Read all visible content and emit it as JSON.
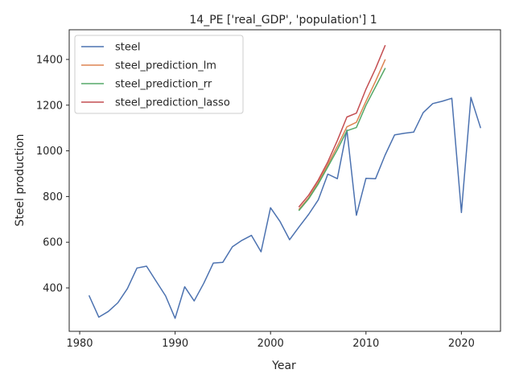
{
  "chart_data": {
    "type": "line",
    "title": "14_PE ['real_GDP', 'population'] 1",
    "xlabel": "Year",
    "ylabel": "Steel production",
    "xlim": [
      1978.9,
      2024.1
    ],
    "ylim": [
      210,
      1530
    ],
    "xticks": [
      1980,
      1990,
      2000,
      2010,
      2020
    ],
    "yticks": [
      400,
      600,
      800,
      1000,
      1200,
      1400
    ],
    "grid": false,
    "legend_position": "top-left",
    "series": [
      {
        "name": "steel",
        "color": "#4c72b0",
        "x": [
          1981,
          1982,
          1983,
          1984,
          1985,
          1986,
          1987,
          1988,
          1989,
          1990,
          1991,
          1992,
          1993,
          1994,
          1995,
          1996,
          1997,
          1998,
          1999,
          2000,
          2001,
          2002,
          2003,
          2004,
          2005,
          2006,
          2007,
          2008,
          2009,
          2010,
          2011,
          2012,
          2013,
          2014,
          2015,
          2016,
          2017,
          2018,
          2019,
          2020,
          2021,
          2022
        ],
        "y": [
          365,
          272,
          297,
          335,
          397,
          487,
          495,
          430,
          365,
          267,
          405,
          343,
          420,
          509,
          512,
          580,
          608,
          630,
          558,
          751,
          690,
          611,
          668,
          722,
          785,
          898,
          878,
          1091,
          718,
          880,
          878,
          981,
          1070,
          1077,
          1082,
          1167,
          1207,
          1217,
          1230,
          730,
          1234,
          1102
        ]
      },
      {
        "name": "steel_prediction_lm",
        "color": "#dd8452",
        "x": [
          2003,
          2004,
          2005,
          2006,
          2007,
          2008,
          2009,
          2010,
          2011,
          2012
        ],
        "y": [
          745,
          795,
          862,
          940,
          1020,
          1105,
          1125,
          1217,
          1305,
          1398
        ]
      },
      {
        "name": "steel_prediction_rr",
        "color": "#55a868",
        "x": [
          2003,
          2004,
          2005,
          2006,
          2007,
          2008,
          2009,
          2010,
          2011,
          2012
        ],
        "y": [
          740,
          790,
          855,
          930,
          1005,
          1088,
          1102,
          1200,
          1280,
          1360
        ]
      },
      {
        "name": "steel_prediction_lasso",
        "color": "#c44e52",
        "x": [
          2003,
          2004,
          2005,
          2006,
          2007,
          2008,
          2009,
          2010,
          2011,
          2012
        ],
        "y": [
          756,
          806,
          872,
          952,
          1045,
          1148,
          1165,
          1270,
          1360,
          1460
        ]
      }
    ]
  }
}
